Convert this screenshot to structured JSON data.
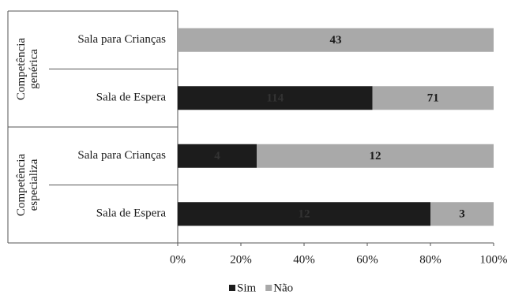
{
  "chart_data": {
    "type": "bar",
    "orientation": "horizontal",
    "stacking": "percent",
    "categories": [
      "Sala para Crianças",
      "Sala de Espera",
      "Sala para Crianças",
      "Sala de Espera"
    ],
    "groups": [
      {
        "label": [
          "Competência",
          "genérica"
        ],
        "size": 2
      },
      {
        "label": [
          "Competência",
          "especializa"
        ],
        "size": 2
      }
    ],
    "series": [
      {
        "name": "Sim",
        "color": "#1c1c1c",
        "label_color": "#333333",
        "values": [
          0,
          114,
          4,
          12
        ]
      },
      {
        "name": "Não",
        "color": "#a9a9a9",
        "label_color": "#1a1a1a",
        "values": [
          43,
          71,
          12,
          3
        ]
      }
    ],
    "xlim": [
      0,
      100
    ],
    "xticks": [
      {
        "value": 0,
        "label": "0%"
      },
      {
        "value": 20,
        "label": "20%"
      },
      {
        "value": 40,
        "label": "40%"
      },
      {
        "value": 60,
        "label": "60%"
      },
      {
        "value": 80,
        "label": "80%"
      },
      {
        "value": 100,
        "label": "100%"
      }
    ],
    "legend": "bottom"
  }
}
